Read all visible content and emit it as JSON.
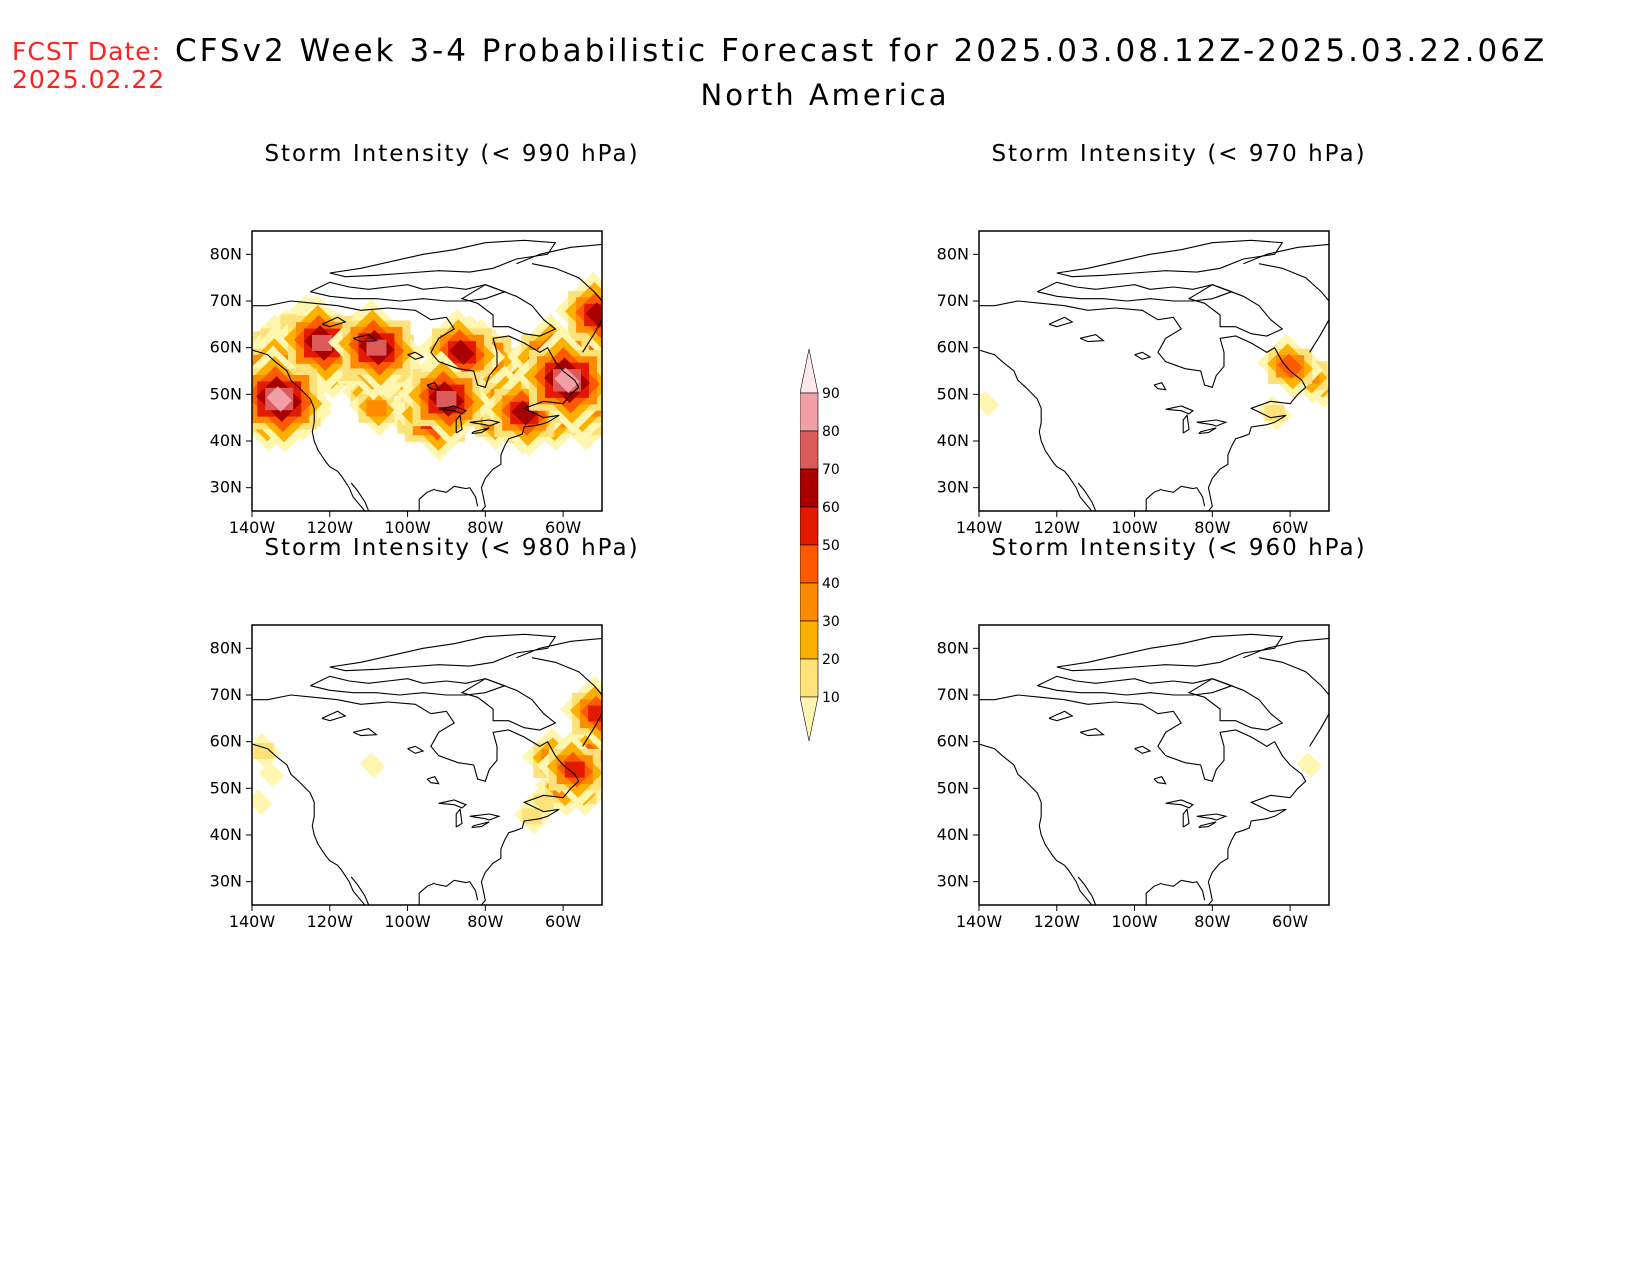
{
  "header": {
    "fcst_date_label": "FCST Date:",
    "fcst_date_value": "2025.02.22",
    "title": "CFSv2 Week 3-4 Probabilistic Forecast for 2025.03.08.12Z-2025.03.22.06Z",
    "subtitle": "North America"
  },
  "axes": {
    "lat_labels": [
      "80N",
      "70N",
      "60N",
      "50N",
      "40N",
      "30N"
    ],
    "lon_labels": [
      "140W",
      "120W",
      "100W",
      "80W",
      "60W"
    ]
  },
  "panels": [
    {
      "id": "p990",
      "title": "Storm Intensity (< 990 hPa)"
    },
    {
      "id": "p970",
      "title": "Storm Intensity (< 970 hPa)"
    },
    {
      "id": "p980",
      "title": "Storm Intensity (< 980 hPa)"
    },
    {
      "id": "p960",
      "title": "Storm Intensity (< 960 hPa)"
    }
  ],
  "colorbar": {
    "levels": [
      "10",
      "20",
      "30",
      "40",
      "50",
      "60",
      "70",
      "80",
      "90"
    ],
    "colors": [
      "#fff7b0",
      "#fde27a",
      "#fdb000",
      "#fd8a00",
      "#fd5a00",
      "#e41a00",
      "#a80000",
      "#dc5a5a",
      "#f2a0a8",
      "#fde8ec"
    ]
  },
  "map_data": {
    "lon_range": [
      -140,
      -50
    ],
    "lat_range": [
      25,
      85
    ],
    "p990": [
      {
        "lon": -137,
        "lat": 56,
        "v": 50
      },
      {
        "lon": -137,
        "lat": 52,
        "v": 60
      },
      {
        "lon": -137,
        "lat": 47,
        "v": 70
      },
      {
        "lon": -133,
        "lat": 59,
        "v": 60
      },
      {
        "lon": -133,
        "lat": 54,
        "v": 80
      },
      {
        "lon": -133,
        "lat": 49,
        "v": 90
      },
      {
        "lon": -133,
        "lat": 44,
        "v": 40
      },
      {
        "lon": -130,
        "lat": 59,
        "v": 70
      },
      {
        "lon": -130,
        "lat": 52,
        "v": 60
      },
      {
        "lon": -128,
        "lat": 47,
        "v": 50
      },
      {
        "lon": -125,
        "lat": 62,
        "v": 70
      },
      {
        "lon": -125,
        "lat": 57,
        "v": 50
      },
      {
        "lon": -122,
        "lat": 61,
        "v": 80
      },
      {
        "lon": -120,
        "lat": 55,
        "v": 40
      },
      {
        "lon": -118,
        "lat": 60,
        "v": 60
      },
      {
        "lon": -115,
        "lat": 57,
        "v": 40
      },
      {
        "lon": -112,
        "lat": 61,
        "v": 50
      },
      {
        "lon": -110,
        "lat": 58,
        "v": 70
      },
      {
        "lon": -108,
        "lat": 60,
        "v": 80
      },
      {
        "lon": -106,
        "lat": 57,
        "v": 60
      },
      {
        "lon": -104,
        "lat": 59,
        "v": 50
      },
      {
        "lon": -111,
        "lat": 50,
        "v": 30
      },
      {
        "lon": -108,
        "lat": 47,
        "v": 40
      },
      {
        "lon": -100,
        "lat": 52,
        "v": 30
      },
      {
        "lon": -99,
        "lat": 44,
        "v": 30
      },
      {
        "lon": -96,
        "lat": 47,
        "v": 50
      },
      {
        "lon": -93,
        "lat": 45,
        "v": 70
      },
      {
        "lon": -92,
        "lat": 51,
        "v": 60
      },
      {
        "lon": -90,
        "lat": 49,
        "v": 80
      },
      {
        "lon": -88,
        "lat": 53,
        "v": 50
      },
      {
        "lon": -86,
        "lat": 55,
        "v": 40
      },
      {
        "lon": -86,
        "lat": 59,
        "v": 70
      },
      {
        "lon": -83,
        "lat": 60,
        "v": 50
      },
      {
        "lon": -80,
        "lat": 58,
        "v": 60
      },
      {
        "lon": -80,
        "lat": 54,
        "v": 30
      },
      {
        "lon": -76,
        "lat": 56,
        "v": 50
      },
      {
        "lon": -78,
        "lat": 44,
        "v": 40
      },
      {
        "lon": -74,
        "lat": 48,
        "v": 60
      },
      {
        "lon": -70,
        "lat": 46,
        "v": 70
      },
      {
        "lon": -71,
        "lat": 42,
        "v": 30
      },
      {
        "lon": -66,
        "lat": 51,
        "v": 40
      },
      {
        "lon": -62,
        "lat": 57,
        "v": 80
      },
      {
        "lon": -59,
        "lat": 53,
        "v": 90
      },
      {
        "lon": -56,
        "lat": 49,
        "v": 70
      },
      {
        "lon": -53,
        "lat": 57,
        "v": 70
      },
      {
        "lon": -52,
        "lat": 51,
        "v": 60
      },
      {
        "lon": -55,
        "lat": 45,
        "v": 50
      },
      {
        "lon": -63,
        "lat": 46,
        "v": 60
      },
      {
        "lon": -51,
        "lat": 67,
        "v": 70
      }
    ],
    "p970": [
      {
        "lon": -138,
        "lat": 48,
        "v": 10
      },
      {
        "lon": -60,
        "lat": 56,
        "v": 50
      },
      {
        "lon": -55,
        "lat": 54,
        "v": 40
      },
      {
        "lon": -52,
        "lat": 52,
        "v": 30
      },
      {
        "lon": -64,
        "lat": 46,
        "v": 20
      }
    ],
    "p980": [
      {
        "lon": -137,
        "lat": 58,
        "v": 20
      },
      {
        "lon": -135,
        "lat": 53,
        "v": 10
      },
      {
        "lon": -138,
        "lat": 47,
        "v": 10
      },
      {
        "lon": -109,
        "lat": 55,
        "v": 10
      },
      {
        "lon": -62,
        "lat": 56,
        "v": 50
      },
      {
        "lon": -57,
        "lat": 54,
        "v": 60
      },
      {
        "lon": -53,
        "lat": 57,
        "v": 50
      },
      {
        "lon": -60,
        "lat": 50,
        "v": 40
      },
      {
        "lon": -55,
        "lat": 49,
        "v": 30
      },
      {
        "lon": -65,
        "lat": 47,
        "v": 20
      },
      {
        "lon": -68,
        "lat": 44,
        "v": 20
      },
      {
        "lon": -51,
        "lat": 66,
        "v": 60
      }
    ],
    "p960": [
      {
        "lon": -55,
        "lat": 55,
        "v": 10
      }
    ]
  }
}
